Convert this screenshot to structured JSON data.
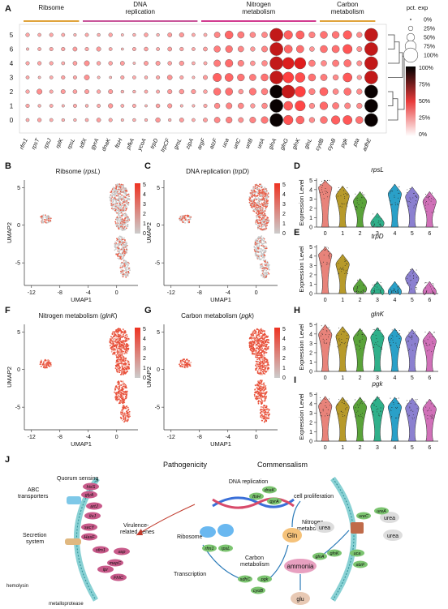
{
  "panels": {
    "A": "A",
    "B": "B",
    "C": "C",
    "D": "D",
    "E": "E",
    "F": "F",
    "G": "G",
    "H": "H",
    "I": "I",
    "J": "J"
  },
  "dotplot": {
    "categories": [
      {
        "label": "Ribsome",
        "color": "#e0a33a"
      },
      {
        "label": "DNA\nreplication",
        "color": "#c8559a"
      },
      {
        "label": "Nitrogen\nmetabolism",
        "color": "#d13a8f"
      },
      {
        "label": "Carbon\nmetabolism",
        "color": "#e0a33a"
      }
    ],
    "genes": [
      "rfm1",
      "rpsT",
      "rpsJ",
      "rplK",
      "rpsL",
      "tdfX",
      "gyrA",
      "dnaK",
      "ftsH",
      "pfkA",
      "ycoA",
      "trpD",
      "trpCF",
      "groL",
      "zipA",
      "argF",
      "atzF",
      "uca",
      "urtC",
      "urtB",
      "urtA",
      "glnA",
      "glnG",
      "glnK",
      "glnL",
      "cydB",
      "cyoB",
      "pgk",
      "pta",
      "adhE"
    ],
    "clusters": [
      "5",
      "6",
      "4",
      "3",
      "2",
      "1",
      "0"
    ],
    "legend_pct_title": "pct. exp",
    "legend_pct": [
      "0%",
      "25%",
      "50%",
      "75%",
      "100%"
    ],
    "legend_col": [
      "100%",
      "75%",
      "50%",
      "25%",
      "0%"
    ]
  },
  "umap": {
    "xlabel": "UMAP1",
    "ylabel": "UMAP2",
    "xticks": [
      "-12",
      "-8",
      "-4",
      "0"
    ],
    "yticks": [
      "5",
      "0",
      "-5"
    ],
    "cbar": [
      "5",
      "4",
      "3",
      "2",
      "1",
      "0"
    ],
    "B": {
      "title_pre": "Ribsome (",
      "gene": "rpsL",
      "title_post": ")"
    },
    "C": {
      "title_pre": "DNA replication (",
      "gene": "trpD",
      "title_post": ")"
    },
    "F": {
      "title_pre": "Nitrogen metabolism (",
      "gene": "glnK",
      "title_post": ")"
    },
    "G": {
      "title_pre": "Carbon metabolism (",
      "gene": "pgk",
      "title_post": ")"
    }
  },
  "violin": {
    "ylabel": "Expression Level",
    "yticks": [
      "0",
      "1",
      "2",
      "3",
      "4",
      "5"
    ],
    "clusters": [
      "0",
      "1",
      "2",
      "3",
      "4",
      "5",
      "6"
    ],
    "colors": [
      "#e8837a",
      "#b79a2a",
      "#5aa33a",
      "#2fb08a",
      "#2aa0c8",
      "#8b80d0",
      "#d070b8"
    ],
    "D": {
      "gene": "rpsL",
      "levels": [
        4.1,
        3.2,
        2.6,
        0.3,
        3.4,
        3.1,
        2.6
      ]
    },
    "E": {
      "gene": "trpD",
      "levels": [
        4.0,
        3.0,
        0.4,
        0.1,
        0.1,
        1.5,
        0.1
      ]
    },
    "H": {
      "gene": "glnK",
      "levels": [
        3.8,
        3.6,
        3.4,
        3.5,
        3.4,
        3.3,
        3.1
      ]
    },
    "I": {
      "gene": "pgk",
      "levels": [
        3.6,
        3.5,
        3.5,
        3.6,
        3.5,
        3.4,
        3.3
      ]
    }
  },
  "schematic": {
    "pathogenicity": "Pathogenicity",
    "commensalism": "Commensalism",
    "quorum": "Quorum sensing",
    "abc": "ABC\ntransporters",
    "secretion": "Secretion\nsystem",
    "virulence": "Virulence-\nrelated genes",
    "hemolysin": "hemolysin",
    "metalloprotease": "metalloprotease",
    "dna_rep": "DNA replication",
    "ribosome": "Ribosome",
    "transcription": "Transcription",
    "carbon": "Carbon\nmetabolism",
    "energy": "energy",
    "cell_prolif": "cell proliferation",
    "nitrogen": "Nitrogen\nmetabolism",
    "gln": "Gln",
    "ammonia": "ammonia",
    "glu": "glu",
    "urea": "urea",
    "left_genes": [
      "hisS",
      "glyA",
      "artJ",
      "livJ",
      "secY",
      "HasF",
      "sfm1",
      "asp",
      "mepC",
      "lpr",
      "FhIC"
    ],
    "mid_genes": [
      "ftsH",
      "dnaK",
      "gyrA",
      "rfm1",
      "rpsL",
      "sdhC",
      "pgk",
      "cyoB",
      "glnA",
      "glnK",
      "ureC",
      "ureA",
      "uca",
      "atzF"
    ]
  }
}
